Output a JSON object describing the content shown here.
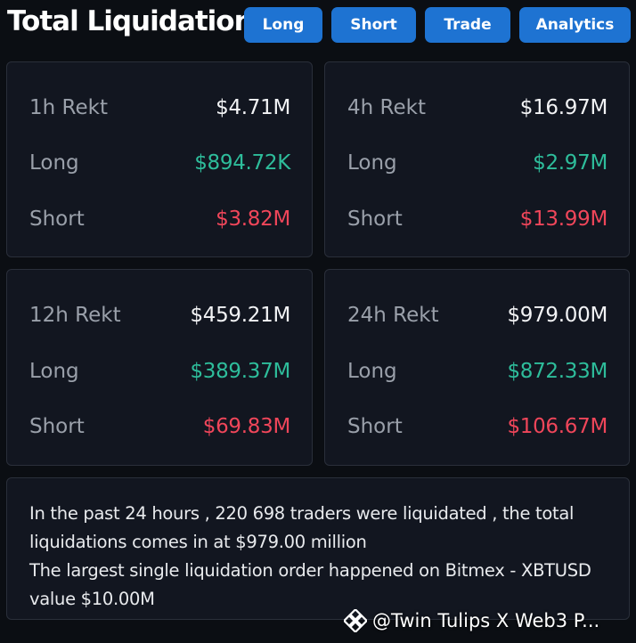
{
  "header": {
    "title": "Total Liquidations",
    "buttons": [
      "Long",
      "Short",
      "Trade",
      "Analytics"
    ]
  },
  "colors": {
    "background": "#0b0e13",
    "card": "#121620",
    "accent_button": "#1e73d2",
    "long": "#2ebd9b",
    "short": "#f0465a"
  },
  "cards": [
    {
      "period_label": "1h Rekt",
      "total": "$4.71M",
      "long_label": "Long",
      "long_value": "$894.72K",
      "short_label": "Short",
      "short_value": "$3.82M"
    },
    {
      "period_label": "4h Rekt",
      "total": "$16.97M",
      "long_label": "Long",
      "long_value": "$2.97M",
      "short_label": "Short",
      "short_value": "$13.99M"
    },
    {
      "period_label": "12h Rekt",
      "total": "$459.21M",
      "long_label": "Long",
      "long_value": "$389.37M",
      "short_label": "Short",
      "short_value": "$69.83M"
    },
    {
      "period_label": "24h Rekt",
      "total": "$979.00M",
      "long_label": "Long",
      "long_value": "$872.33M",
      "short_label": "Short",
      "short_value": "$106.67M"
    }
  ],
  "summary": {
    "line1": "In the past 24 hours , 220 698 traders were liquidated , the total liquidations comes in at $979.00 million",
    "line2": "The largest single liquidation order happened on Bitmex - XBTUSD value $10.00M"
  },
  "watermark": {
    "text": "@Twin Tulips X Web3 P...",
    "icon": "binance-logo-icon"
  }
}
